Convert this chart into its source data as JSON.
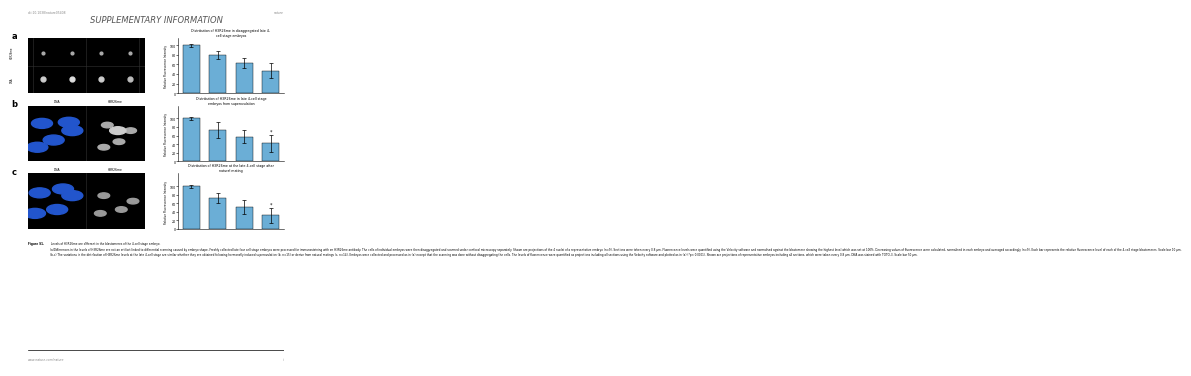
{
  "title": "SUPPLEMENTARY INFORMATION",
  "doi_text": "doi:10.1038/nature05408",
  "nature_text": "nature",
  "panel_labels": [
    "a",
    "b",
    "c"
  ],
  "chart_a": {
    "title": "Distribution of H3R26me in disaggregated late 4-\ncell stage embryos",
    "ylabel": "Relative Fluorescence Intensity",
    "bars": [
      100,
      80,
      63,
      47
    ],
    "errors": [
      3,
      8,
      10,
      15
    ],
    "ylim": [
      0,
      115
    ],
    "yticks": [
      0,
      20,
      40,
      60,
      80,
      100
    ],
    "bar_color": "#6baed6",
    "asterisk": null
  },
  "chart_b": {
    "title": "Distribution of H3R26me in late 4-cell stage\nembryos from superovulation",
    "ylabel": "Relative Fluorescence Intensity",
    "bars": [
      100,
      73,
      57,
      42
    ],
    "errors": [
      4,
      18,
      15,
      20
    ],
    "ylim": [
      0,
      130
    ],
    "yticks": [
      0,
      20,
      40,
      60,
      80,
      100
    ],
    "bar_color": "#6baed6",
    "asterisk": "*"
  },
  "chart_c": {
    "title": "Distribution of H3R26me at the late 4-cell stage after\nnatural mating",
    "ylabel": "Relative Fluorescence Intensity",
    "bars": [
      100,
      72,
      52,
      32
    ],
    "errors": [
      4,
      12,
      16,
      18
    ],
    "ylim": [
      0,
      130
    ],
    "yticks": [
      0,
      20,
      40,
      60,
      80,
      100
    ],
    "bar_color": "#6baed6",
    "asterisk": "*"
  },
  "figure_legend_bold": "Figure S1.",
  "figure_legend_text": " Levels of H3R26me are different in the blastomeres of the 4-cell stage embryo.\n(a)Differences in the levels of H3R26me are not an artifact linked to differential scanning caused by embryo shape. Freshly collected late four cell stage embryos were processed for immunostaining with an H3R26me antibody. The cells of individual embryos were then disaggregated and scanned under confocal microscopy separately. Shown are projections of the 4 nuclei of a representative embryo (n=9). Sections were taken every 0.8 μm. Fluorescence levels were quantified using the Velocity software and normalised against the blastomere showing the highest level which was set at 100%. Decreasing values of fluorescence were calculated, normalised in each embryo and averaged accordingly (n=9). Each bar represents the relative fluorescence level of each of the 4-cell stage blastomeres. Scale bar 10 μm.\n(b-c) The variations in the distribution of H3R26me levels at the late 4-cell stage are similar whether they are obtained following hormonally induced superovulation (b, n=15) or derive from natural matings (c, n=14). Embryos were collected and processed as in (a) except that the scanning was done without disaggregating the cells. The levels of fluorescence were quantified as projections including all sections using the Velocity software and plotted as in (a) (*p< 0.0001). Shown are projections of representative embryos including all sections, which were taken every 0.8 μm. DNA was stained with TOTO-3. Scale bar 50 μm.",
  "website": "www.nature.com/nature",
  "page": "i",
  "bg_color": "#ffffff"
}
